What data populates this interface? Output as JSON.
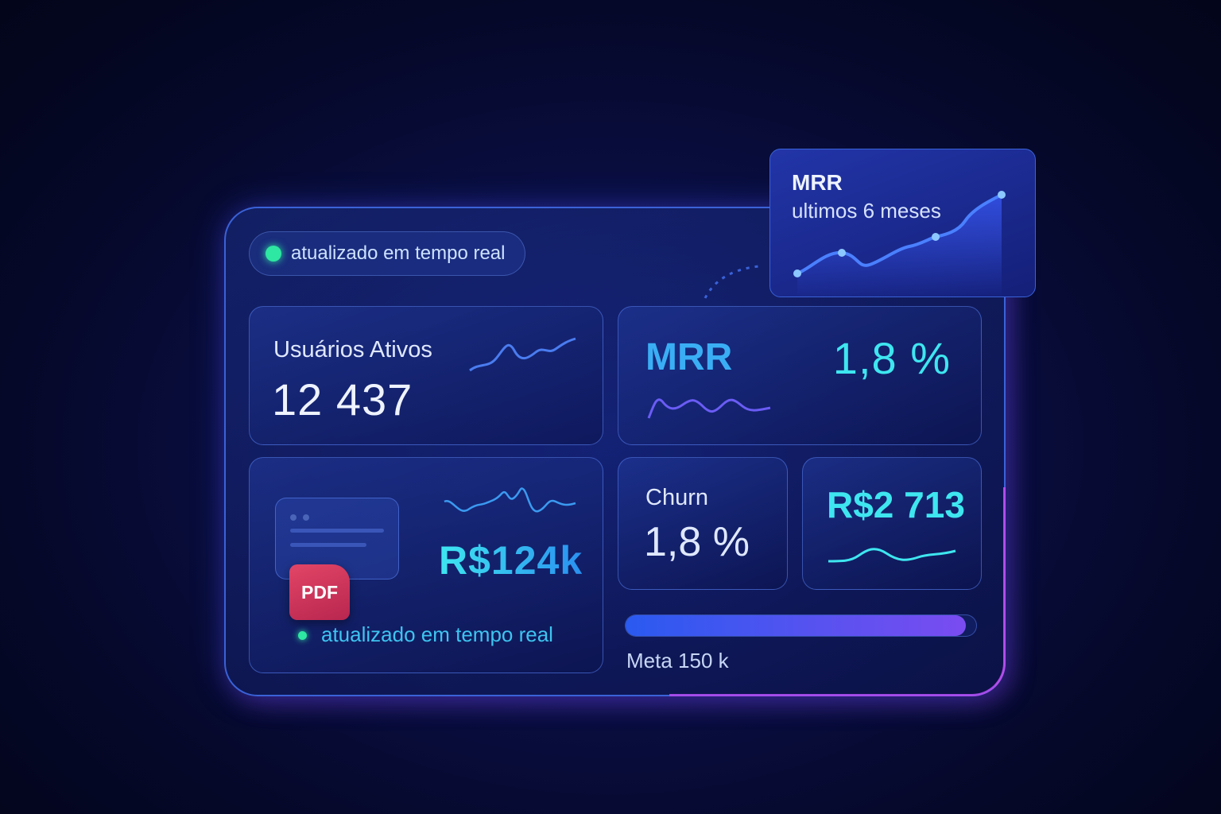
{
  "status_badge": {
    "label": "atualizado em tempo real",
    "color": "#2ee7a2"
  },
  "cards": {
    "active_users": {
      "label": "Usuários Ativos",
      "value": "12 437"
    },
    "mrr": {
      "label": "MRR",
      "value": "1,8 %"
    },
    "revenue": {
      "value": "R$124k",
      "file_type": "PDF",
      "status": "atualizado em tempo real"
    },
    "churn": {
      "label": "Churn",
      "value": "1,8 %"
    },
    "ticket": {
      "value": "R$2 713"
    }
  },
  "goal": {
    "label": "Meta 150 k",
    "progress_fraction": 0.97
  },
  "mrr_popup": {
    "title": "MRR",
    "subtitle": "ultimos 6 meses"
  },
  "colors": {
    "accent": "#3ee6f0",
    "pdf": "#d6345c",
    "border_glow": "#c04cf0"
  }
}
